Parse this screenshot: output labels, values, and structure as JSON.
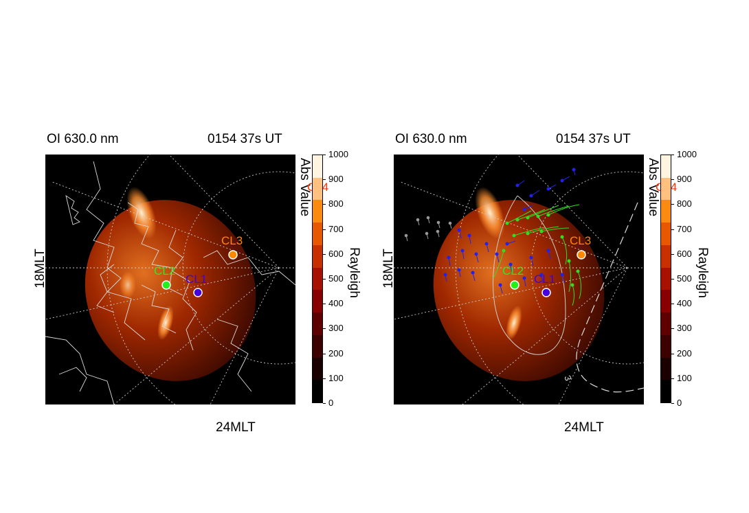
{
  "panels": [
    {
      "id": "left",
      "title_left": "OI 630.0 nm",
      "title_right": "0154 37s UT",
      "mlt_side": "18MLT",
      "mlt_bottom": "24MLT",
      "abs_value_label": "Abs Value",
      "colorbar_label": "Rayleigh",
      "stations": [
        "CL2",
        "CL1",
        "CL3",
        "CL4"
      ]
    },
    {
      "id": "right",
      "title_left": "OI 630.0 nm",
      "title_right": "0154 37s UT",
      "mlt_side": "18MLT",
      "mlt_bottom": "24MLT",
      "abs_value_label": "Abs Value",
      "colorbar_label": "Rayleigh",
      "contour_label": "3",
      "stations": [
        "CL2",
        "CL1",
        "CL3",
        "CL4"
      ]
    }
  ],
  "colorbar": {
    "ticks": [
      "1000",
      "900",
      "800",
      "700",
      "600",
      "500",
      "400",
      "300",
      "200",
      "100",
      "0"
    ],
    "colors": [
      "#000000",
      "#1a0000",
      "#3c0000",
      "#5e0000",
      "#880000",
      "#a81000",
      "#c83000",
      "#e85800",
      "#fa8a10",
      "#ffc080",
      "#fff4e0"
    ]
  },
  "station_colors": {
    "CL1": "#4400dd",
    "CL2": "#22ee22",
    "CL3": "#ff8800",
    "CL4": "#ff3300"
  }
}
